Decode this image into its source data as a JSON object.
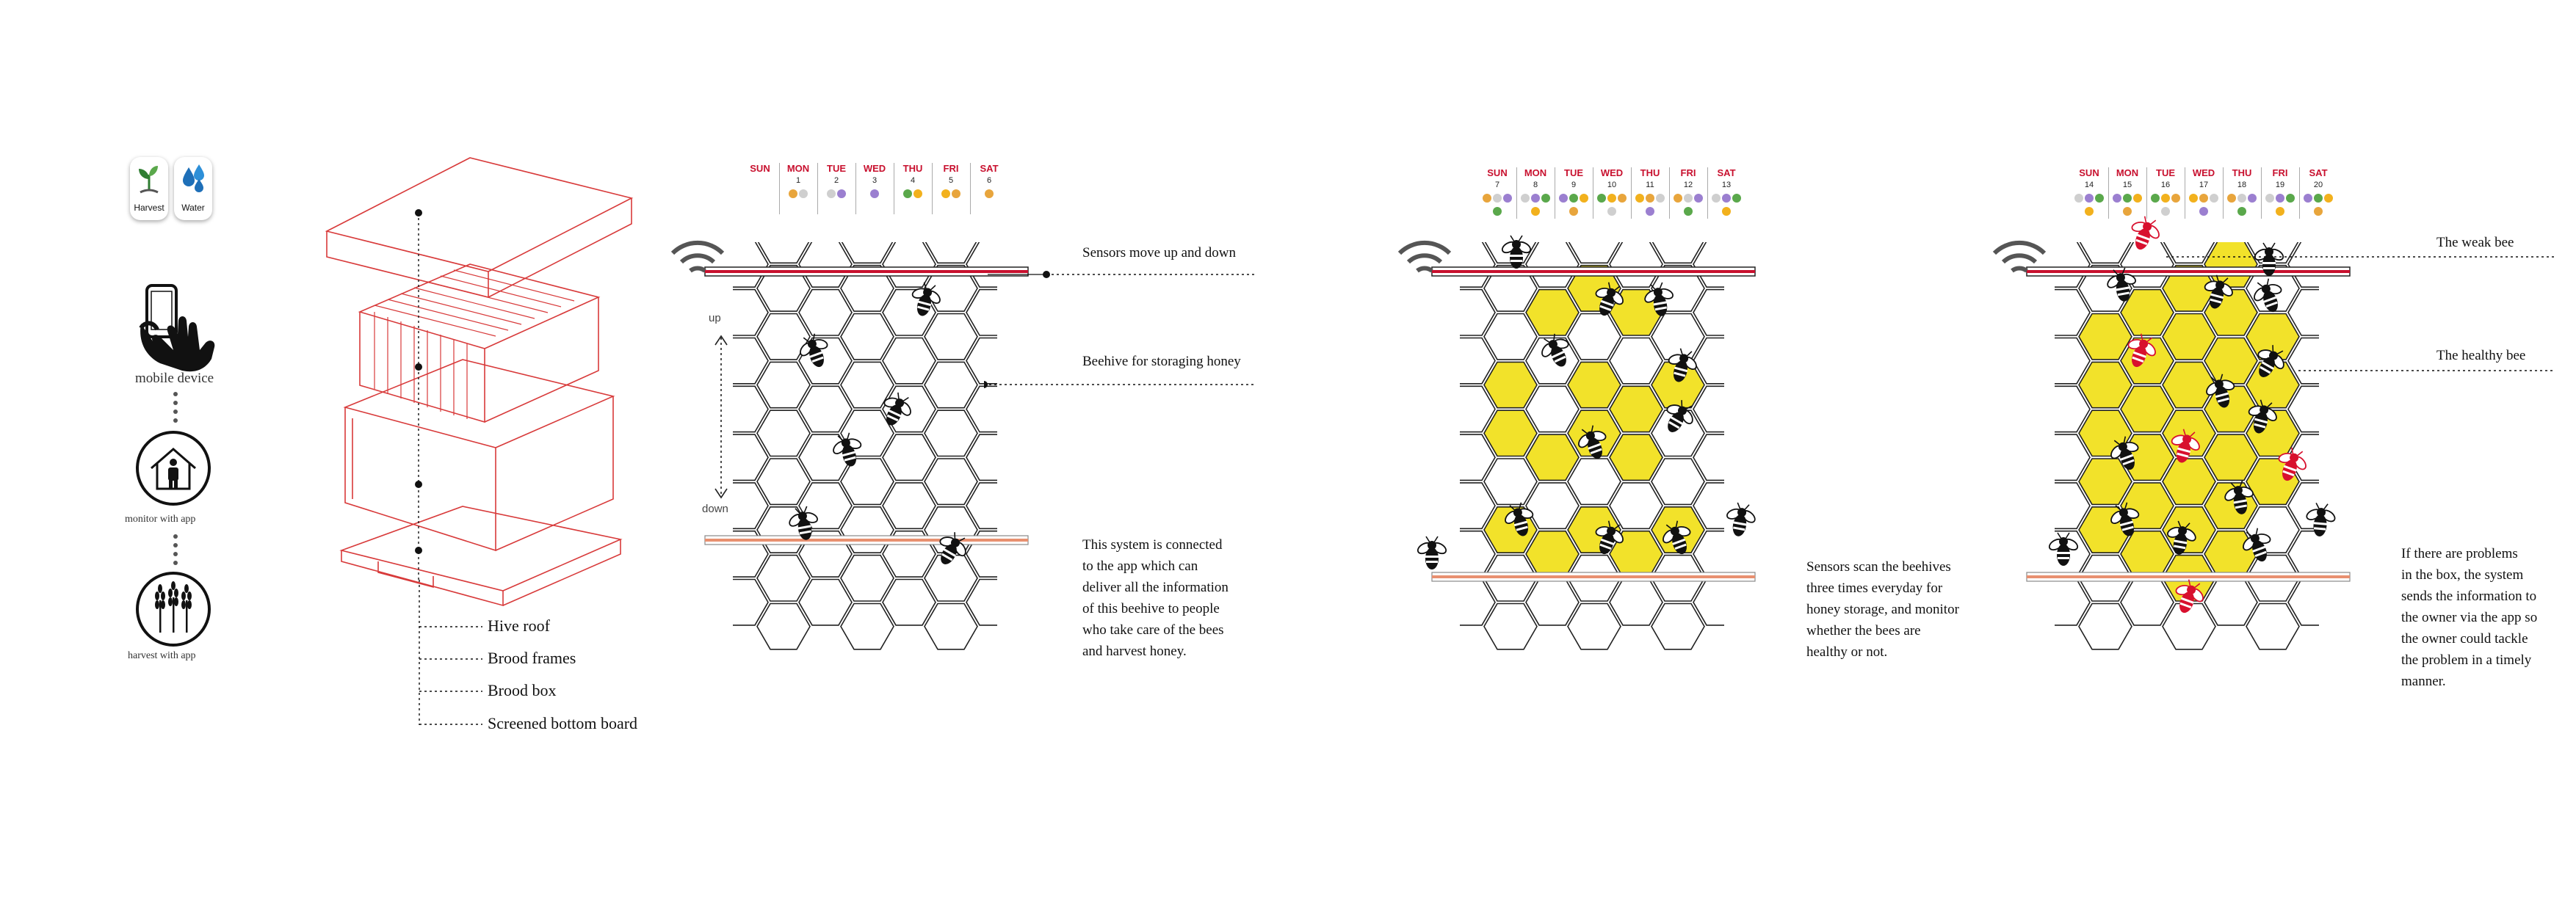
{
  "apps": {
    "harvest_label": "Harvest",
    "water_label": "Water"
  },
  "flow": {
    "mobile_label": "mobile device",
    "monitor_label": "monitor  with app",
    "harvest_label": "harvest with app"
  },
  "hive_legend": {
    "items": [
      "Hive roof",
      "Brood frames",
      "Brood box",
      "Screened bottom board"
    ]
  },
  "panel1": {
    "up_label": "up",
    "down_label": "down",
    "sensor_label": "Sensors move up and down",
    "beehive_label": "Beehive for storaging honey",
    "desc_lines": [
      "This system is  connected",
      "to the app which can",
      "deliver all the information",
      "of this beehive to people",
      "who take care of the bees",
      "and harvest honey."
    ]
  },
  "panel2": {
    "desc_lines": [
      "Sensors scan the beehives",
      "three times everyday for",
      "honey storage, and monitor",
      "whether the bees are",
      "healthy or not."
    ]
  },
  "panel3": {
    "weak_label": "The weak bee",
    "healthy_label": "The healthy bee",
    "desc_lines": [
      "If there are  problems",
      "in the box, the system",
      "sends the information to",
      "the owner via the app so",
      "the owner could tackle",
      "the problem in a timely",
      "manner."
    ]
  },
  "calendars": [
    {
      "days": [
        "SUN",
        "MON",
        "TUE",
        "WED",
        "THU",
        "FRI",
        "SAT"
      ],
      "dates": [
        "",
        "1",
        "2",
        "3",
        "4",
        "5",
        "6"
      ]
    },
    {
      "days": [
        "SUN",
        "MON",
        "TUE",
        "WED",
        "THU",
        "FRI",
        "SAT"
      ],
      "dates": [
        "7",
        "8",
        "9",
        "10",
        "11",
        "12",
        "13"
      ]
    },
    {
      "days": [
        "SUN",
        "MON",
        "TUE",
        "WED",
        "THU",
        "FRI",
        "SAT"
      ],
      "dates": [
        "14",
        "15",
        "16",
        "17",
        "18",
        "19",
        "20"
      ]
    }
  ],
  "colors": {
    "accent_red": "#c8102e",
    "honey_yellow": "#f2e22a",
    "line": "#222222",
    "box_red": "#d83a3a"
  },
  "icons": {
    "harvest": "sprout-icon",
    "water": "water-drops-icon",
    "mobile": "hand-phone-icon",
    "monitor": "house-person-icon",
    "harvest_app": "wheat-icon",
    "wifi": "wifi-icon"
  }
}
